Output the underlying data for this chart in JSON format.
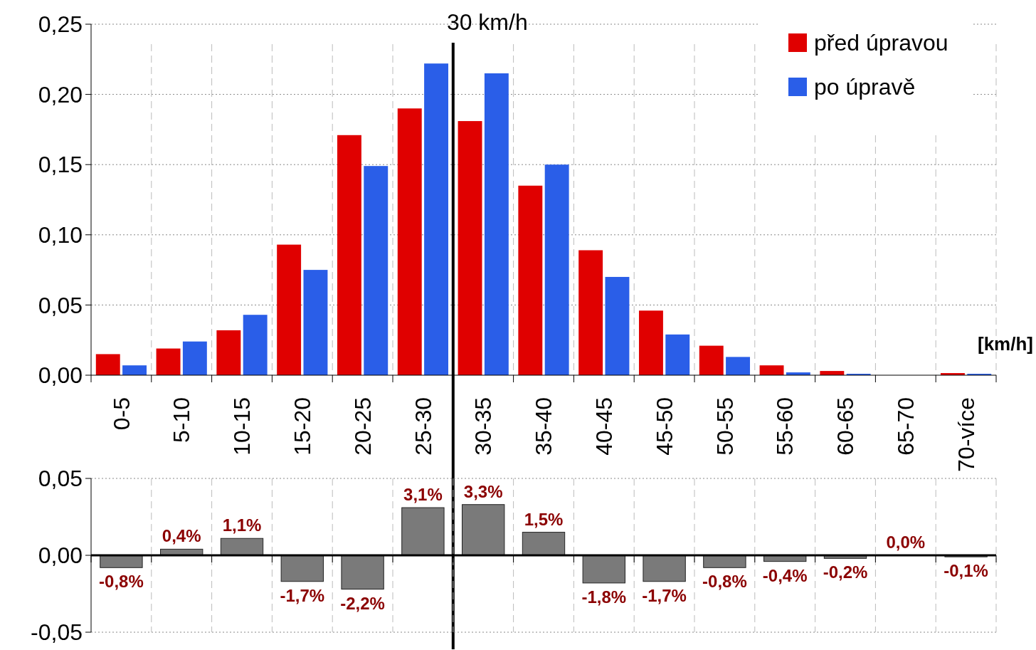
{
  "chart_data": [
    {
      "type": "bar",
      "categories": [
        "0-5",
        "5-10",
        "10-15",
        "15-20",
        "20-25",
        "25-30",
        "30-35",
        "35-40",
        "40-45",
        "45-50",
        "50-55",
        "55-60",
        "60-65",
        "65-70",
        "70-více"
      ],
      "series": [
        {
          "name": "před úpravou",
          "color": "#e00000",
          "values": [
            0.015,
            0.019,
            0.032,
            0.093,
            0.171,
            0.19,
            0.181,
            0.135,
            0.089,
            0.046,
            0.021,
            0.007,
            0.003,
            0,
            0.0015
          ]
        },
        {
          "name": "po úpravě",
          "color": "#2a5ee8",
          "values": [
            0.007,
            0.024,
            0.043,
            0.075,
            0.149,
            0.222,
            0.215,
            0.15,
            0.07,
            0.029,
            0.013,
            0.002,
            0.001,
            0,
            0.001
          ]
        }
      ],
      "ylim": [
        0,
        0.25
      ],
      "yticks": [
        {
          "value": 0,
          "label": "0,00"
        },
        {
          "value": 0.05,
          "label": "0,05"
        },
        {
          "value": 0.1,
          "label": "0,10"
        },
        {
          "value": 0.15,
          "label": "0,15"
        },
        {
          "value": 0.2,
          "label": "0,20"
        },
        {
          "value": 0.25,
          "label": "0,25"
        }
      ],
      "xlabel": "[km/h]",
      "grid": true,
      "legend": "top right",
      "ref_lines": [
        {
          "axis": "x",
          "value": "30-35",
          "label": "30 km/h",
          "color": "#000000"
        }
      ]
    },
    {
      "type": "bar",
      "categories": [
        null,
        null,
        null,
        null,
        null,
        null,
        null,
        null,
        null,
        null,
        null,
        null,
        null,
        null,
        null
      ],
      "values": [
        -0.008,
        0.004,
        0.011,
        -0.017,
        -0.022,
        0.031,
        0.033,
        0.015,
        -0.018,
        -0.017,
        -0.008,
        -0.004,
        -0.002,
        0,
        -0.001
      ],
      "color": "#7a7a7a",
      "value_labels": [
        "-0,8%",
        "0,4%",
        "1,1%",
        "-1,7%",
        "-2,2%",
        "3,1%",
        "3,3%",
        "1,5%",
        "-1,8%",
        "-1,7%",
        "-0,8%",
        "-0,4%",
        "-0,2%",
        "0,0%",
        "-0,1%"
      ],
      "ylim": [
        -0.05,
        0.05
      ],
      "yticks": [
        {
          "value": -0.05,
          "label": "-0,05"
        },
        {
          "value": 0,
          "label": "0,00"
        },
        {
          "value": 0.05,
          "label": "0,05"
        }
      ],
      "tick_labels": "y",
      "grid": true
    }
  ]
}
